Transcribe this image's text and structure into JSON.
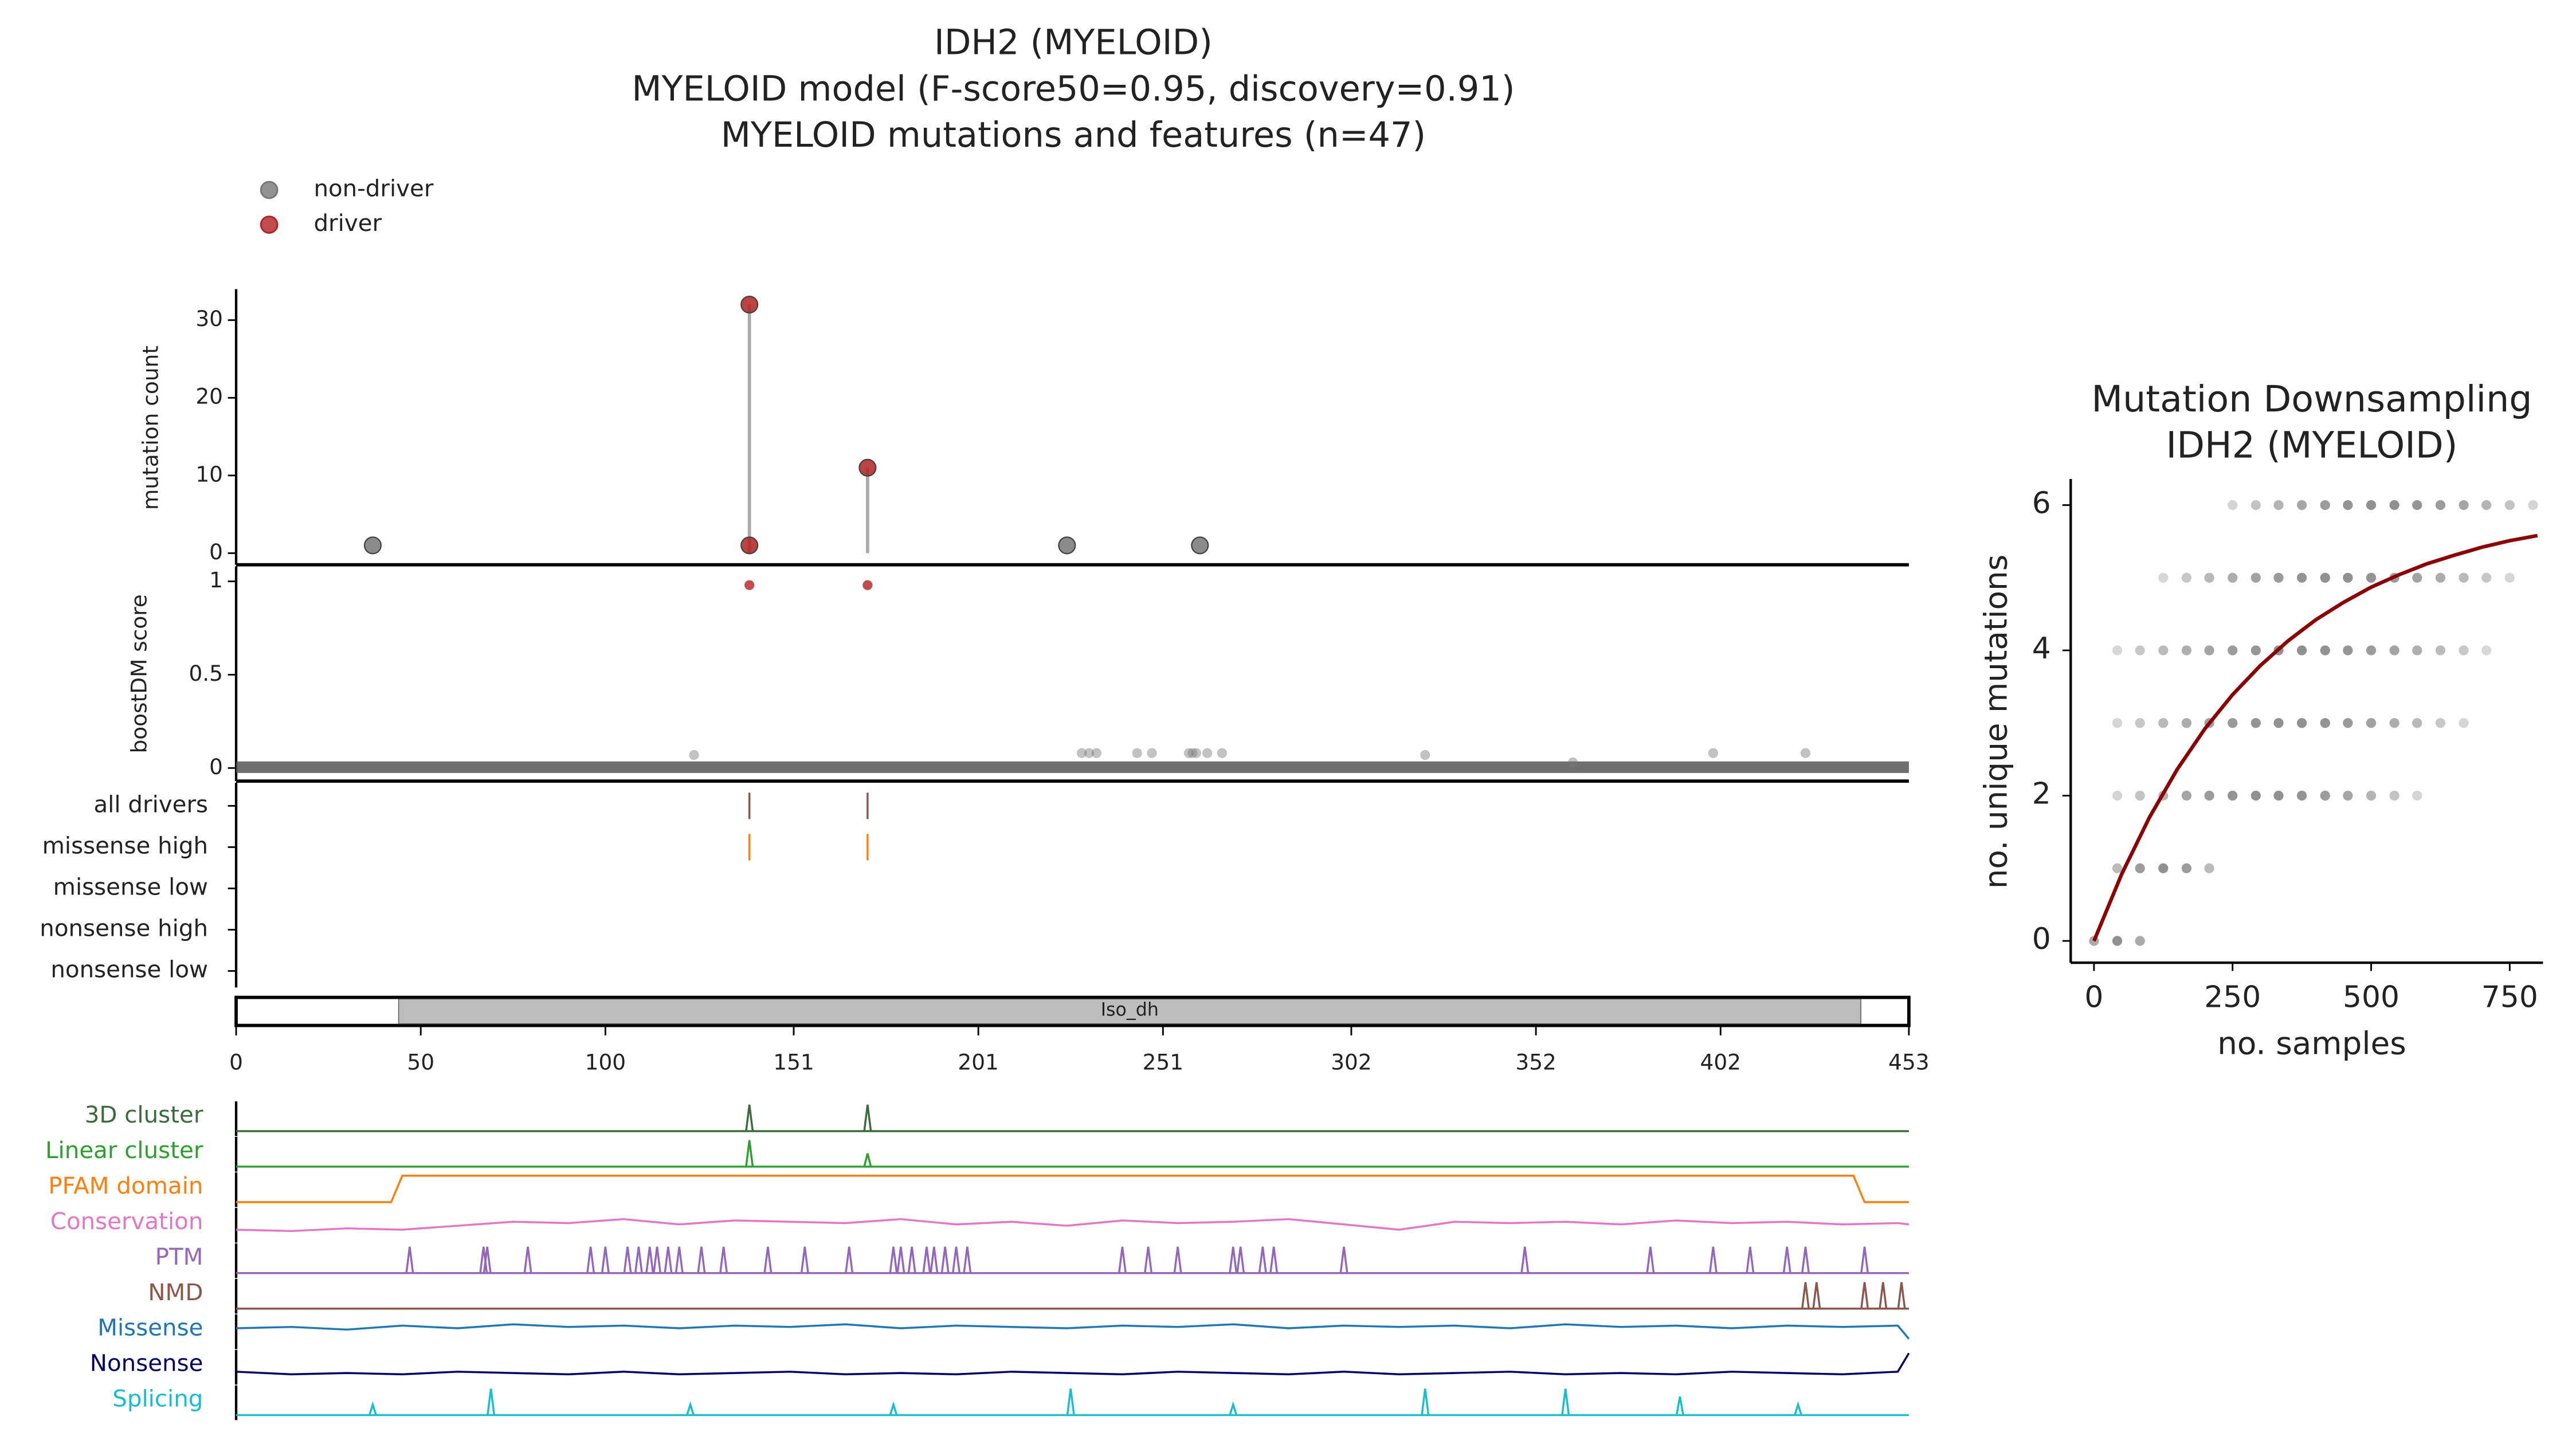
{
  "chart_data": [
    {
      "type": "lollipop",
      "title": [
        "IDH2 (MYELOID)",
        "MYELOID model (F-score50=0.95, discovery=0.91)",
        "MYELOID mutations and features (n=47)"
      ],
      "ylabel": "mutation count",
      "xlim": [
        0,
        453
      ],
      "ylim": [
        -1.5,
        34
      ],
      "yticks": [
        0,
        10,
        20,
        30
      ],
      "series": [
        {
          "name": "non-driver",
          "color": "#777777",
          "x": [
            37,
            225,
            261
          ],
          "values": [
            1,
            1,
            1
          ]
        },
        {
          "name": "driver",
          "color": "#b22222",
          "x": [
            139,
            139,
            171
          ],
          "values": [
            32,
            1,
            11
          ]
        }
      ]
    },
    {
      "type": "scatter",
      "ylabel": "boostDM score",
      "xlim": [
        0,
        453
      ],
      "ylim": [
        -0.07,
        1.08
      ],
      "yticks": [
        0,
        0.5,
        1
      ],
      "series": [
        {
          "color": "#777777",
          "x": [
            124,
            229,
            231,
            233,
            244,
            248,
            258,
            259,
            260,
            263,
            267,
            322,
            362,
            400,
            425
          ],
          "values": [
            0.07,
            0.08,
            0.08,
            0.08,
            0.08,
            0.08,
            0.08,
            0.08,
            0.08,
            0.08,
            0.08,
            0.07,
            0.03,
            0.08,
            0.08
          ]
        },
        {
          "color": "#b22222",
          "x": [
            139,
            171
          ],
          "values": [
            0.98,
            0.98
          ]
        }
      ]
    },
    {
      "type": "tracks",
      "xlim": [
        0,
        453
      ],
      "categories": [
        "all drivers",
        "missense high",
        "missense low",
        "nonsense high",
        "nonsense low"
      ],
      "rows": [
        {
          "color": "#8c564b",
          "x": [
            139,
            171
          ]
        },
        {
          "color": "#ff7f0e",
          "x": [
            139,
            171
          ]
        },
        {
          "x": []
        },
        {
          "x": []
        },
        {
          "x": []
        }
      ]
    },
    {
      "type": "domains",
      "xlim": [
        0,
        453
      ],
      "xticks": [
        0,
        50,
        100,
        151,
        201,
        251,
        302,
        352,
        402,
        453
      ],
      "domains": [
        {
          "name": "Iso_dh",
          "start": 44,
          "end": 440
        }
      ]
    },
    {
      "type": "features",
      "xlim": [
        0,
        453
      ],
      "tracks": [
        {
          "name": "3D cluster",
          "color": "#3b6b3b",
          "kind": "spikes",
          "x": [
            139,
            171
          ],
          "values": [
            1,
            1
          ]
        },
        {
          "name": "Linear cluster",
          "color": "#2ca02c",
          "kind": "spikes",
          "x": [
            139,
            171
          ],
          "values": [
            1,
            0.5
          ]
        },
        {
          "name": "PFAM domain",
          "color": "#ff7f0e",
          "kind": "line",
          "x": [
            0,
            42,
            45,
            438,
            441,
            453
          ],
          "values": [
            0,
            0,
            1,
            1,
            0,
            0
          ]
        },
        {
          "name": "Conservation",
          "color": "#e377c2",
          "kind": "line",
          "x": [
            0,
            15,
            30,
            45,
            60,
            75,
            90,
            105,
            120,
            135,
            150,
            165,
            180,
            195,
            210,
            225,
            240,
            255,
            270,
            285,
            300,
            315,
            330,
            345,
            360,
            375,
            390,
            405,
            420,
            435,
            450,
            453
          ],
          "values": [
            0.3,
            0.25,
            0.35,
            0.3,
            0.45,
            0.6,
            0.55,
            0.7,
            0.5,
            0.65,
            0.6,
            0.55,
            0.7,
            0.5,
            0.6,
            0.45,
            0.65,
            0.55,
            0.6,
            0.7,
            0.5,
            0.3,
            0.6,
            0.55,
            0.6,
            0.5,
            0.65,
            0.55,
            0.6,
            0.5,
            0.55,
            0.5
          ]
        },
        {
          "name": "PTM",
          "color": "#9467bd",
          "kind": "spikes",
          "x": [
            47,
            67,
            68,
            79,
            96,
            100,
            106,
            109,
            112,
            114,
            117,
            120,
            126,
            132,
            144,
            154,
            166,
            178,
            180,
            183,
            187,
            189,
            192,
            195,
            198,
            240,
            247,
            255,
            270,
            272,
            278,
            281,
            300,
            349,
            383,
            400,
            410,
            420,
            425,
            441
          ],
          "values": [
            1,
            1,
            1,
            1,
            1,
            1,
            1,
            1,
            1,
            1,
            1,
            1,
            1,
            1,
            1,
            1,
            1,
            1,
            1,
            1,
            1,
            1,
            1,
            1,
            1,
            1,
            1,
            1,
            1,
            1,
            1,
            1,
            1,
            1,
            1,
            1,
            1,
            1,
            1,
            1
          ]
        },
        {
          "name": "NMD",
          "color": "#8c564b",
          "kind": "spikes",
          "x": [
            425,
            428,
            441,
            446,
            451
          ],
          "values": [
            1,
            1,
            1,
            1,
            1
          ]
        },
        {
          "name": "Missense",
          "color": "#1f77b4",
          "kind": "line",
          "x": [
            0,
            15,
            30,
            45,
            60,
            75,
            90,
            105,
            120,
            135,
            150,
            165,
            180,
            195,
            210,
            225,
            240,
            255,
            270,
            285,
            300,
            315,
            330,
            345,
            360,
            375,
            390,
            405,
            420,
            435,
            450,
            453
          ],
          "values": [
            0.6,
            0.65,
            0.55,
            0.7,
            0.6,
            0.75,
            0.65,
            0.7,
            0.6,
            0.7,
            0.65,
            0.75,
            0.6,
            0.7,
            0.65,
            0.6,
            0.7,
            0.65,
            0.75,
            0.6,
            0.7,
            0.65,
            0.7,
            0.6,
            0.75,
            0.65,
            0.7,
            0.6,
            0.7,
            0.65,
            0.7,
            0.2
          ]
        },
        {
          "name": "Nonsense",
          "color": "#000066",
          "kind": "line",
          "x": [
            0,
            15,
            30,
            45,
            60,
            75,
            90,
            105,
            120,
            135,
            150,
            165,
            180,
            195,
            210,
            225,
            240,
            255,
            270,
            285,
            300,
            315,
            330,
            345,
            360,
            375,
            390,
            405,
            420,
            435,
            450,
            453
          ],
          "values": [
            0.3,
            0.2,
            0.25,
            0.2,
            0.3,
            0.25,
            0.2,
            0.3,
            0.2,
            0.25,
            0.3,
            0.2,
            0.25,
            0.2,
            0.3,
            0.25,
            0.2,
            0.3,
            0.25,
            0.2,
            0.3,
            0.2,
            0.25,
            0.3,
            0.2,
            0.25,
            0.2,
            0.3,
            0.25,
            0.2,
            0.3,
            1
          ]
        },
        {
          "name": "Splicing",
          "color": "#17becf",
          "kind": "spikes",
          "x": [
            37,
            69,
            123,
            178,
            226,
            270,
            322,
            360,
            391,
            423
          ],
          "values": [
            0.4,
            1,
            0.4,
            0.4,
            1,
            0.4,
            1,
            1,
            0.7,
            0.4
          ]
        }
      ]
    },
    {
      "type": "scatter-fit",
      "title": [
        "Mutation Downsampling",
        "IDH2 (MYELOID)"
      ],
      "xlabel": "no. samples",
      "ylabel": "no. unique mutations",
      "xlim": [
        -42,
        810
      ],
      "ylim": [
        -0.3,
        6.36
      ],
      "xticks": [
        0,
        250,
        500,
        750
      ],
      "yticks": [
        0,
        2,
        4,
        6
      ],
      "rows": [
        {
          "y": 6,
          "x": [
            250,
            292,
            333,
            375,
            417,
            458,
            500,
            542,
            583,
            625,
            667,
            708,
            750,
            792
          ]
        },
        {
          "y": 5,
          "x": [
            125,
            167,
            208,
            250,
            292,
            333,
            375,
            417,
            458,
            500,
            542,
            583,
            625,
            667,
            708,
            750
          ]
        },
        {
          "y": 4,
          "x": [
            42,
            83,
            125,
            167,
            208,
            250,
            292,
            333,
            375,
            417,
            458,
            500,
            542,
            583,
            625,
            667,
            708
          ]
        },
        {
          "y": 3,
          "x": [
            42,
            83,
            125,
            167,
            208,
            250,
            292,
            333,
            375,
            417,
            458,
            500,
            542,
            583,
            625,
            667
          ]
        },
        {
          "y": 2,
          "x": [
            42,
            83,
            125,
            167,
            208,
            250,
            292,
            333,
            375,
            417,
            458,
            500,
            542,
            583
          ]
        },
        {
          "y": 1,
          "x": [
            42,
            83,
            125,
            167,
            208
          ]
        },
        {
          "y": 0,
          "x": [
            0,
            42,
            83
          ]
        }
      ],
      "fit": {
        "color": "#8b0000",
        "x": [
          0,
          50,
          100,
          150,
          200,
          250,
          300,
          350,
          400,
          450,
          500,
          550,
          600,
          650,
          700,
          750,
          800
        ],
        "values": [
          0,
          0.92,
          1.7,
          2.36,
          2.92,
          3.39,
          3.79,
          4.13,
          4.42,
          4.66,
          4.87,
          5.04,
          5.19,
          5.31,
          5.42,
          5.51,
          5.58
        ]
      }
    }
  ]
}
